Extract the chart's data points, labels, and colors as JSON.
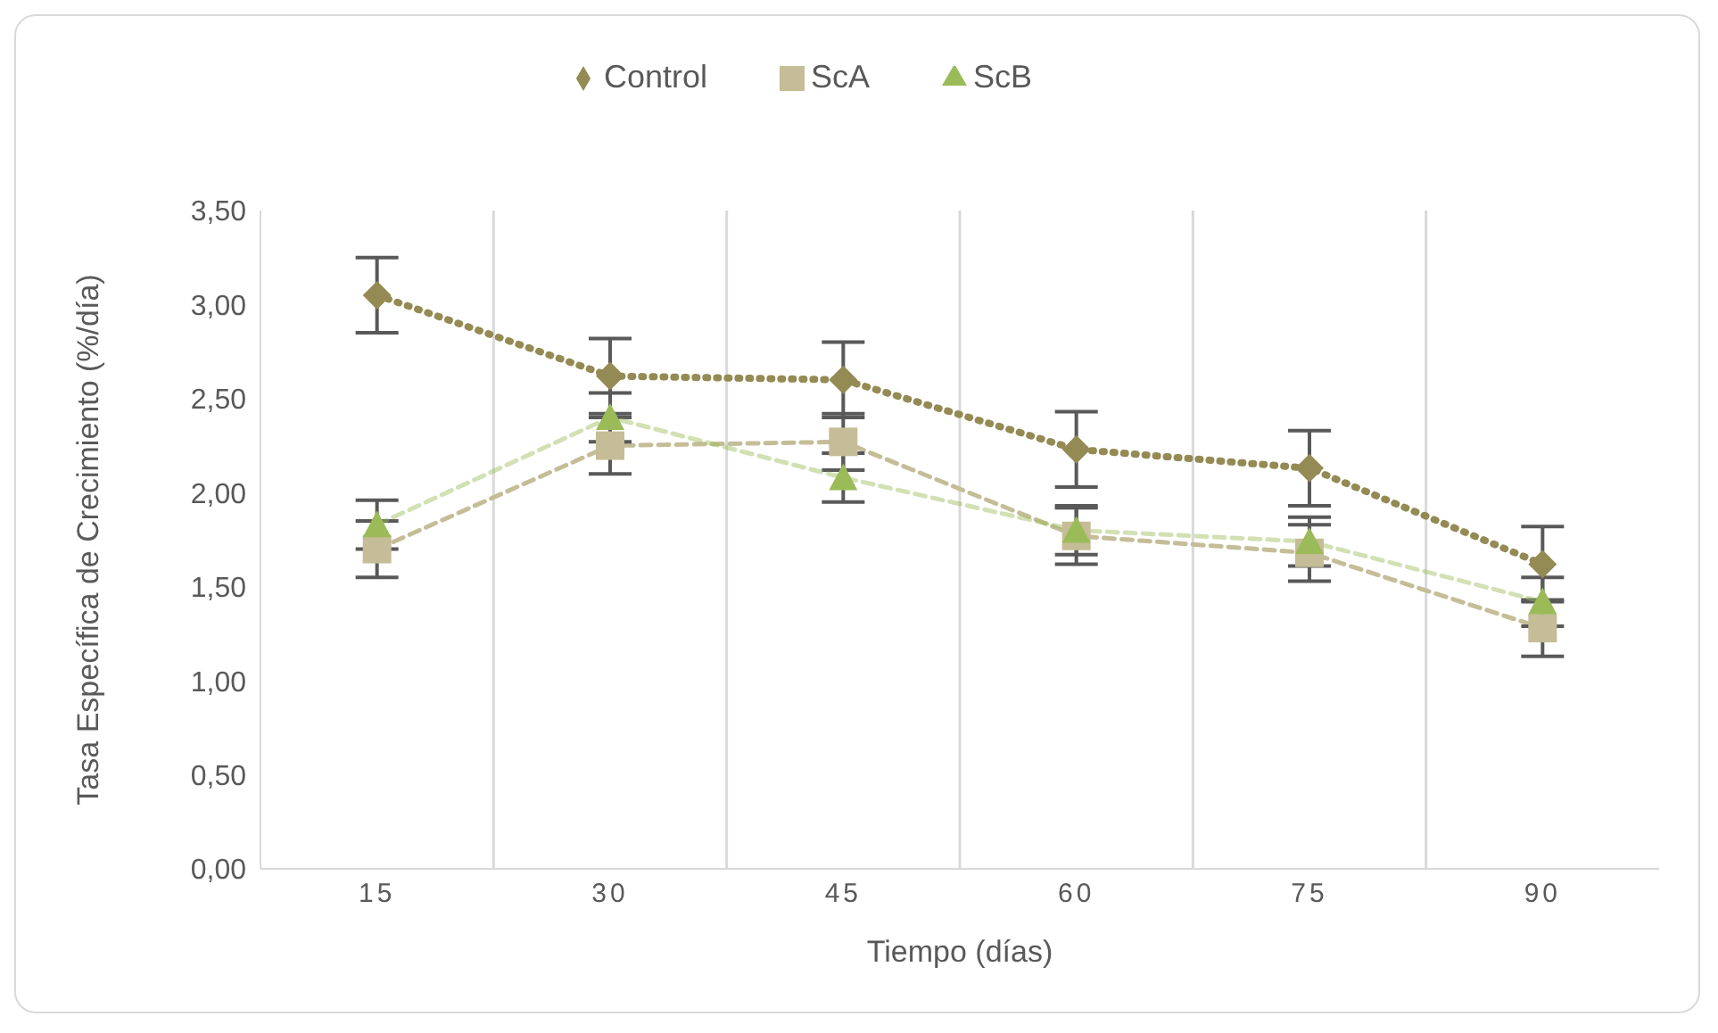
{
  "chart_data": {
    "type": "line",
    "xlabel": "Tiempo (días)",
    "ylabel": "Tasa Específica de Crecimiento (%/día)",
    "categories": [
      "15",
      "30",
      "45",
      "60",
      "75",
      "90"
    ],
    "series": [
      {
        "name": "Control",
        "color": "#948a54",
        "marker": "diamond",
        "line_style": "dotted",
        "values": [
          3.05,
          2.62,
          2.6,
          2.23,
          2.13,
          1.62
        ],
        "errors": [
          0.2,
          0.2,
          0.2,
          0.2,
          0.2,
          0.2
        ]
      },
      {
        "name": "ScA",
        "color": "#c4bd97",
        "marker": "square",
        "line_style": "dashed",
        "values": [
          1.7,
          2.25,
          2.27,
          1.77,
          1.68,
          1.28
        ],
        "errors": [
          0.15,
          0.15,
          0.15,
          0.15,
          0.15,
          0.15
        ]
      },
      {
        "name": "ScB",
        "color": "#9bbb59",
        "marker": "triangle",
        "line_style": "dashed",
        "values": [
          1.83,
          2.4,
          2.08,
          1.8,
          1.74,
          1.42
        ],
        "errors": [
          0.13,
          0.13,
          0.13,
          0.13,
          0.13,
          0.13
        ]
      }
    ],
    "ylim": [
      0,
      3.5
    ],
    "yticks": [
      {
        "value": 0,
        "label": "0,00"
      },
      {
        "value": 0.5,
        "label": "0,50"
      },
      {
        "value": 1,
        "label": "1,00"
      },
      {
        "value": 1.5,
        "label": "1,50"
      },
      {
        "value": 2,
        "label": "2,00"
      },
      {
        "value": 2.5,
        "label": "2,50"
      },
      {
        "value": 3,
        "label": "3,00"
      },
      {
        "value": 3.5,
        "label": "3,50"
      }
    ],
    "grid": "x",
    "legend": "top"
  }
}
